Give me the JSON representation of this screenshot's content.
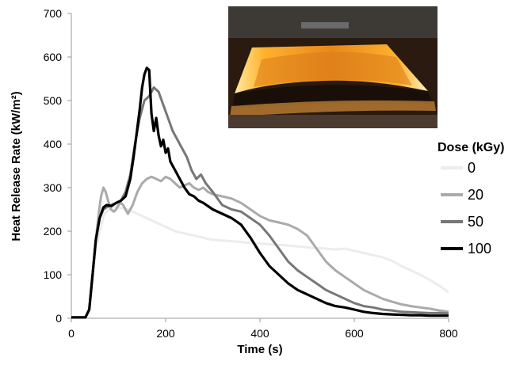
{
  "chart_data": {
    "type": "line",
    "xlabel": "Time (s)",
    "ylabel": "Heat Release Rate (kW/m²)",
    "xlim": [
      0,
      800
    ],
    "ylim": [
      0,
      700
    ],
    "xticks": [
      "0",
      "200",
      "400",
      "600",
      "800"
    ],
    "yticks": [
      "0",
      "100",
      "200",
      "300",
      "400",
      "500",
      "600",
      "700"
    ],
    "grid": false,
    "legend_title": "Dose (kGy)",
    "legend_position": "right",
    "has_inset_photo": true,
    "series": [
      {
        "name": "0",
        "color": "#ececec",
        "x": [
          0,
          30,
          38,
          45,
          52,
          60,
          70,
          80,
          90,
          100,
          120,
          140,
          160,
          180,
          200,
          220,
          240,
          260,
          280,
          300,
          330,
          360,
          390,
          420,
          450,
          480,
          510,
          540,
          560,
          580,
          600,
          620,
          640,
          660,
          680,
          700,
          720,
          740,
          760,
          780,
          800
        ],
        "y": [
          2,
          2,
          20,
          100,
          160,
          200,
          240,
          250,
          255,
          255,
          250,
          240,
          230,
          220,
          210,
          200,
          195,
          190,
          185,
          180,
          178,
          175,
          172,
          170,
          168,
          165,
          162,
          160,
          158,
          160,
          155,
          150,
          145,
          140,
          132,
          120,
          110,
          100,
          88,
          75,
          60
        ]
      },
      {
        "name": "20",
        "color": "#aaaaaa",
        "x": [
          0,
          30,
          38,
          45,
          52,
          58,
          63,
          68,
          73,
          78,
          84,
          90,
          95,
          100,
          105,
          110,
          115,
          120,
          130,
          140,
          150,
          160,
          170,
          180,
          190,
          200,
          210,
          220,
          230,
          240,
          250,
          260,
          270,
          280,
          290,
          300,
          320,
          340,
          360,
          380,
          400,
          420,
          440,
          460,
          480,
          500,
          520,
          540,
          560,
          580,
          600,
          620,
          640,
          660,
          680,
          700,
          720,
          740,
          760,
          780,
          800
        ],
        "y": [
          2,
          2,
          20,
          100,
          180,
          240,
          280,
          300,
          290,
          270,
          250,
          245,
          250,
          260,
          265,
          260,
          250,
          240,
          260,
          290,
          310,
          320,
          325,
          320,
          315,
          325,
          320,
          310,
          300,
          305,
          310,
          300,
          295,
          300,
          290,
          285,
          280,
          275,
          265,
          250,
          235,
          225,
          220,
          215,
          205,
          190,
          160,
          130,
          110,
          95,
          80,
          65,
          55,
          45,
          38,
          32,
          28,
          25,
          22,
          18,
          15
        ]
      },
      {
        "name": "50",
        "color": "#777777",
        "x": [
          0,
          30,
          38,
          45,
          52,
          60,
          68,
          75,
          85,
          95,
          105,
          115,
          125,
          135,
          145,
          155,
          165,
          175,
          185,
          195,
          205,
          215,
          225,
          235,
          245,
          255,
          265,
          275,
          285,
          300,
          320,
          340,
          360,
          380,
          400,
          420,
          440,
          460,
          480,
          500,
          520,
          540,
          560,
          580,
          600,
          620,
          640,
          660,
          680,
          700,
          720,
          740,
          760,
          780,
          800
        ],
        "y": [
          2,
          2,
          20,
          100,
          180,
          230,
          250,
          255,
          260,
          265,
          270,
          290,
          330,
          400,
          460,
          500,
          510,
          530,
          520,
          490,
          460,
          430,
          410,
          390,
          370,
          340,
          320,
          330,
          310,
          290,
          260,
          250,
          245,
          230,
          215,
          190,
          160,
          130,
          110,
          95,
          80,
          65,
          55,
          45,
          35,
          28,
          25,
          20,
          18,
          15,
          14,
          13,
          12,
          12,
          11
        ]
      },
      {
        "name": "100",
        "color": "#000000",
        "x": [
          0,
          30,
          38,
          45,
          52,
          60,
          68,
          75,
          85,
          95,
          105,
          115,
          125,
          132,
          138,
          145,
          150,
          155,
          160,
          165,
          170,
          175,
          180,
          185,
          190,
          195,
          200,
          205,
          210,
          220,
          230,
          240,
          250,
          260,
          270,
          280,
          300,
          320,
          340,
          360,
          380,
          400,
          420,
          440,
          460,
          480,
          500,
          520,
          540,
          560,
          580,
          600,
          620,
          640,
          660,
          680,
          700,
          720,
          740,
          760,
          780,
          800
        ],
        "y": [
          2,
          2,
          20,
          100,
          180,
          230,
          255,
          260,
          258,
          265,
          270,
          280,
          320,
          370,
          420,
          480,
          530,
          560,
          575,
          570,
          470,
          430,
          460,
          420,
          395,
          410,
          380,
          390,
          360,
          340,
          320,
          300,
          285,
          280,
          270,
          265,
          250,
          240,
          230,
          215,
          185,
          150,
          120,
          100,
          80,
          65,
          55,
          45,
          35,
          28,
          25,
          20,
          15,
          12,
          10,
          9,
          8,
          7,
          7,
          6,
          6,
          6
        ]
      }
    ]
  }
}
